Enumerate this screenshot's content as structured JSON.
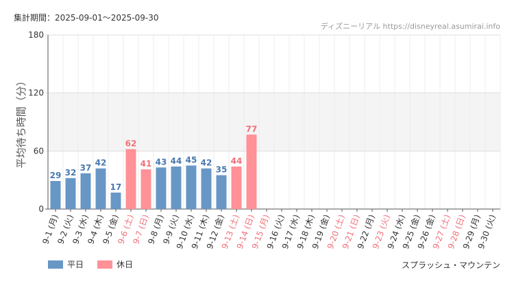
{
  "header": {
    "period_label": "集計期間：",
    "period_range": "2025-09-01～2025-09-30",
    "source": "ディズニーリアル https://disneyreal.asumirai.info"
  },
  "footer": {
    "attraction": "スプラッシュ・マウンテン"
  },
  "colors": {
    "weekday": "#6897c6",
    "holiday": "#ff9197",
    "weekday_label": "#4a78ae",
    "holiday_label": "#f07078",
    "band": "#f4f4f4"
  },
  "chart_data": {
    "type": "bar",
    "ylabel": "平均待ち時間（分）",
    "ylim": [
      0,
      180
    ],
    "yticks": [
      0,
      60,
      120,
      180
    ],
    "bands": [
      [
        60,
        120
      ]
    ],
    "legend": [
      {
        "name": "平日",
        "key": "weekday"
      },
      {
        "name": "休日",
        "key": "holiday"
      }
    ],
    "legend_position": "bottom-left",
    "categories": [
      "9-1 (月)",
      "9-2 (火)",
      "9-3 (水)",
      "9-4 (木)",
      "9-5 (金)",
      "9-6 (土)",
      "9-7 (日)",
      "9-8 (月)",
      "9-9 (火)",
      "9-10 (水)",
      "9-11 (木)",
      "9-12 (金)",
      "9-13 (土)",
      "9-14 (日)",
      "9-15 (月)",
      "9-16 (火)",
      "9-17 (水)",
      "9-18 (木)",
      "9-19 (金)",
      "9-20 (土)",
      "9-21 (日)",
      "9-22 (月)",
      "9-23 (火)",
      "9-24 (水)",
      "9-25 (金)",
      "9-26 (金)",
      "9-27 (土)",
      "9-28 (日)",
      "9-29 (月)",
      "9-30 (火)"
    ],
    "holiday": [
      false,
      false,
      false,
      false,
      false,
      true,
      true,
      false,
      false,
      false,
      false,
      false,
      true,
      true,
      true,
      false,
      false,
      false,
      false,
      true,
      true,
      false,
      true,
      false,
      false,
      false,
      true,
      true,
      false,
      false
    ],
    "values": [
      29,
      32,
      37,
      42,
      17,
      62,
      41,
      43,
      44,
      45,
      42,
      35,
      44,
      77,
      null,
      null,
      null,
      null,
      null,
      null,
      null,
      null,
      null,
      null,
      null,
      null,
      null,
      null,
      null,
      null
    ]
  }
}
